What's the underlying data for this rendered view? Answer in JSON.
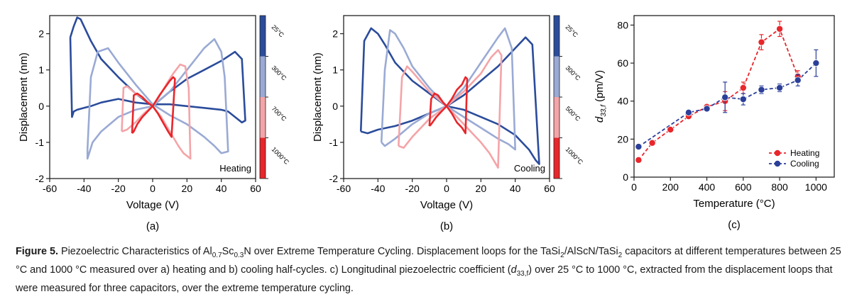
{
  "figure": {
    "caption_label": "Figure 5.",
    "caption_parts": [
      {
        "t": " Piezoelectric Characteristics of Al"
      },
      {
        "t": "0.7",
        "sub": true
      },
      {
        "t": "Sc"
      },
      {
        "t": "0.3",
        "sub": true
      },
      {
        "t": "N over Extreme Temperature Cycling. Displacement loops for the TaSi"
      },
      {
        "t": "2",
        "sub": true
      },
      {
        "t": "/AlScN/TaSi"
      },
      {
        "t": "2",
        "sub": true
      },
      {
        "t": " capacitors at different temperatures between 25 °C and 1000 °C measured over a) heating and b) cooling half-cycles. c) Longitudinal piezoelectric coefficient ("
      },
      {
        "t": "d",
        "it": true
      },
      {
        "t": "33,f",
        "sub": true
      },
      {
        "t": ") over 25 °C to 1000 °C, extracted from the displacement loops that were measured for three capacitors, over the extreme temperature cycling."
      }
    ]
  },
  "chart_data": [
    {
      "type": "line",
      "panel_label": "(a)",
      "annotation": "Heating",
      "xlabel": "Voltage (V)",
      "ylabel": "Displacement (nm)",
      "xlim": [
        -60,
        60
      ],
      "ylim": [
        -2,
        2.5
      ],
      "xticks": [
        -60,
        -40,
        -20,
        0,
        20,
        40,
        60
      ],
      "yticks": [
        -2,
        -1,
        0,
        1,
        2
      ],
      "colorbar": [
        "25°C",
        "300°C",
        "700°C",
        "1000°C"
      ],
      "series": [
        {
          "color": "#2b4c9b",
          "x": [
            -48,
            -46,
            -44,
            -42,
            -40,
            -36,
            -30,
            -20,
            -10,
            0,
            10,
            20,
            30,
            40,
            48,
            52,
            54,
            52,
            48,
            44,
            40,
            30,
            20,
            10,
            0,
            -10,
            -20,
            -30,
            -36,
            -40,
            -44,
            -46,
            -47,
            -48
          ],
          "y": [
            1.9,
            2.2,
            2.45,
            2.4,
            2.2,
            1.8,
            1.3,
            0.8,
            0.35,
            0,
            0.4,
            0.75,
            1.0,
            1.25,
            1.5,
            1.3,
            -0.4,
            -0.45,
            -0.3,
            -0.15,
            -0.1,
            -0.05,
            0,
            0.05,
            0.05,
            0.1,
            0.2,
            0.1,
            0.0,
            -0.05,
            -0.1,
            -0.15,
            -0.3,
            1.9
          ]
        },
        {
          "color": "#9aaad4",
          "x": [
            -38,
            -36,
            -32,
            -26,
            -20,
            -10,
            0,
            10,
            20,
            30,
            36,
            40,
            44,
            42,
            40,
            36,
            30,
            20,
            10,
            0,
            -10,
            -20,
            -30,
            -35,
            -38,
            -38
          ],
          "y": [
            -1.2,
            0.8,
            1.5,
            1.6,
            1.2,
            0.6,
            0.05,
            -0.25,
            -0.5,
            -0.85,
            -1.1,
            -1.3,
            -1.25,
            0.8,
            1.5,
            1.85,
            1.6,
            1.0,
            0.4,
            0,
            -0.1,
            -0.3,
            -0.7,
            -1.0,
            -1.45,
            -1.2
          ]
        },
        {
          "color": "#f4a4a8",
          "x": [
            -18,
            -17,
            -15,
            -10,
            -5,
            0,
            5,
            10,
            15,
            18,
            22,
            21,
            19,
            16,
            12,
            8,
            3,
            0,
            -5,
            -10,
            -15,
            -18
          ],
          "y": [
            -0.7,
            0.5,
            0.55,
            0.35,
            0.2,
            0,
            -0.3,
            -0.7,
            -1.1,
            -1.3,
            -1.45,
            0.5,
            1.1,
            1.15,
            0.9,
            0.6,
            0.2,
            0,
            -0.2,
            -0.45,
            -0.65,
            -0.7
          ]
        },
        {
          "color": "#e8262b",
          "x": [
            -12,
            -11,
            -9,
            -6,
            -3,
            0,
            3,
            6,
            9,
            11,
            13,
            12,
            10,
            7,
            4,
            0,
            -3,
            -6,
            -9,
            -11,
            -12
          ],
          "y": [
            -0.75,
            0.3,
            0.35,
            0.25,
            0.1,
            0,
            -0.2,
            -0.45,
            -0.7,
            -0.85,
            0.75,
            0.8,
            0.7,
            0.5,
            0.3,
            0,
            -0.15,
            -0.3,
            -0.5,
            -0.7,
            -0.75
          ]
        }
      ]
    },
    {
      "type": "line",
      "panel_label": "(b)",
      "annotation": "Cooling",
      "xlabel": "Voltage (V)",
      "ylabel": "Displacement (nm)",
      "xlim": [
        -60,
        60
      ],
      "ylim": [
        -2,
        2.5
      ],
      "xticks": [
        -60,
        -40,
        -20,
        0,
        20,
        40,
        60
      ],
      "yticks": [
        -2,
        -1,
        0,
        1,
        2
      ],
      "colorbar": [
        "25°C",
        "300°C",
        "500°C",
        "1000°C"
      ],
      "series": [
        {
          "color": "#2b4c9b",
          "x": [
            -50,
            -48,
            -44,
            -40,
            -36,
            -30,
            -20,
            -10,
            0,
            10,
            20,
            30,
            40,
            46,
            50,
            54,
            52,
            48,
            44,
            40,
            30,
            20,
            10,
            0,
            -10,
            -20,
            -30,
            -40,
            -46,
            -50
          ],
          "y": [
            -0.7,
            1.8,
            2.15,
            2.0,
            1.7,
            1.2,
            0.7,
            0.35,
            0,
            0.3,
            0.7,
            1.1,
            1.6,
            1.9,
            1.7,
            -1.6,
            -1.5,
            -1.2,
            -1.0,
            -0.8,
            -0.5,
            -0.3,
            -0.1,
            0,
            -0.2,
            -0.4,
            -0.55,
            -0.65,
            -0.75,
            -0.7
          ]
        },
        {
          "color": "#9aaad4",
          "x": [
            -38,
            -36,
            -33,
            -30,
            -25,
            -20,
            -10,
            0,
            10,
            20,
            30,
            36,
            40,
            38,
            34,
            30,
            20,
            10,
            0,
            -10,
            -20,
            -30,
            -36,
            -38
          ],
          "y": [
            -1.0,
            1.0,
            2.1,
            2.0,
            1.6,
            1.1,
            0.5,
            0,
            -0.3,
            -0.6,
            -0.9,
            -1.05,
            -1.2,
            1.6,
            2.15,
            1.9,
            1.2,
            0.5,
            0,
            -0.2,
            -0.5,
            -0.9,
            -1.1,
            -1.0
          ]
        },
        {
          "color": "#f4a4a8",
          "x": [
            -28,
            -26,
            -23,
            -20,
            -10,
            0,
            10,
            20,
            25,
            30,
            32,
            30,
            26,
            20,
            10,
            0,
            -10,
            -20,
            -25,
            -28
          ],
          "y": [
            -1.1,
            0.8,
            1.1,
            0.95,
            0.4,
            0,
            -0.5,
            -1.0,
            -1.3,
            -1.7,
            1.4,
            1.55,
            1.35,
            0.9,
            0.4,
            0,
            -0.35,
            -0.85,
            -1.15,
            -1.1
          ]
        },
        {
          "color": "#e8262b",
          "x": [
            -10,
            -9,
            -7,
            -5,
            -2,
            0,
            3,
            6,
            9,
            11,
            12,
            11,
            9,
            6,
            3,
            0,
            -3,
            -6,
            -9,
            -10
          ],
          "y": [
            -0.55,
            0.2,
            0.35,
            0.3,
            0.1,
            0,
            -0.2,
            -0.45,
            -0.6,
            -0.75,
            0.75,
            0.8,
            0.6,
            0.45,
            0.2,
            0,
            -0.15,
            -0.3,
            -0.5,
            -0.55
          ]
        }
      ]
    },
    {
      "type": "line",
      "panel_label": "(c)",
      "xlabel": "Temperature (°C)",
      "ylabel": "d33,f (pm/V)",
      "xlim": [
        0,
        1100
      ],
      "ylim": [
        0,
        85
      ],
      "xticks": [
        0,
        200,
        400,
        600,
        800,
        1000
      ],
      "yticks": [
        0,
        20,
        40,
        60,
        80
      ],
      "legend_position": "bottom-right",
      "series": [
        {
          "name": "Heating",
          "color": "#e8262b",
          "x": [
            25,
            100,
            200,
            300,
            400,
            500,
            600,
            700,
            800,
            900
          ],
          "y": [
            9,
            18,
            25,
            32,
            37,
            40,
            47,
            71,
            78,
            53
          ],
          "err": [
            1,
            1,
            1,
            1,
            1,
            5,
            3,
            4,
            4,
            3
          ]
        },
        {
          "name": "Cooling",
          "color": "#2b3f99",
          "x": [
            25,
            300,
            400,
            500,
            600,
            700,
            800,
            900,
            1000
          ],
          "y": [
            16,
            34,
            36,
            42,
            41,
            46,
            47,
            51,
            60
          ],
          "err": [
            1,
            1,
            1,
            8,
            3,
            2,
            2,
            3,
            7
          ]
        }
      ]
    }
  ]
}
